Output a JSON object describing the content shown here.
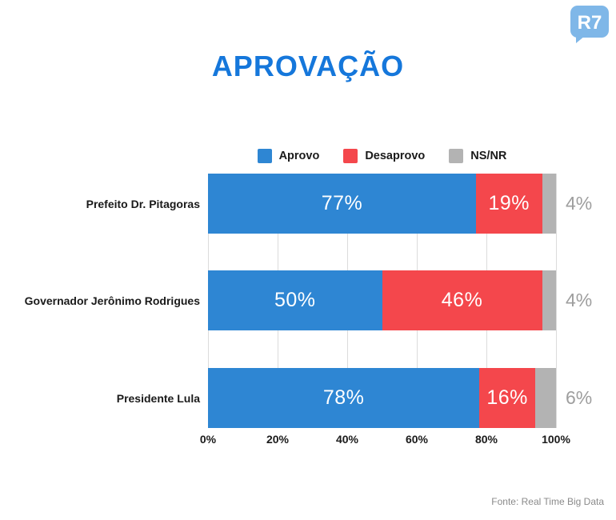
{
  "page": {
    "logo_text": "R7",
    "colors": {
      "title": "#1577DB",
      "aprovo": "#2E86D3",
      "desaprovo": "#F4474C",
      "nsnr": "#B3B3B3",
      "logo": "#7FB7E8"
    }
  },
  "chart_data": {
    "type": "bar",
    "orientation": "horizontal-stacked",
    "title": "APROVAÇÃO",
    "categories": [
      "Prefeito Dr. Pitagoras",
      "Governador Jerônimo Rodrigues",
      "Presidente Lula"
    ],
    "series": [
      {
        "name": "Aprovo",
        "color": "#2E86D3",
        "values": [
          77,
          50,
          78
        ]
      },
      {
        "name": "Desaprovo",
        "color": "#F4474C",
        "values": [
          19,
          46,
          16
        ]
      },
      {
        "name": "NS/NR",
        "color": "#B3B3B3",
        "values": [
          4,
          4,
          6
        ]
      }
    ],
    "value_suffix": "%",
    "xlim": [
      0,
      100
    ],
    "x_ticks": [
      "0%",
      "20%",
      "40%",
      "60%",
      "80%",
      "100%"
    ],
    "grid": true,
    "legend_position": "top",
    "source": "Fonte: Real Time Big Data"
  }
}
